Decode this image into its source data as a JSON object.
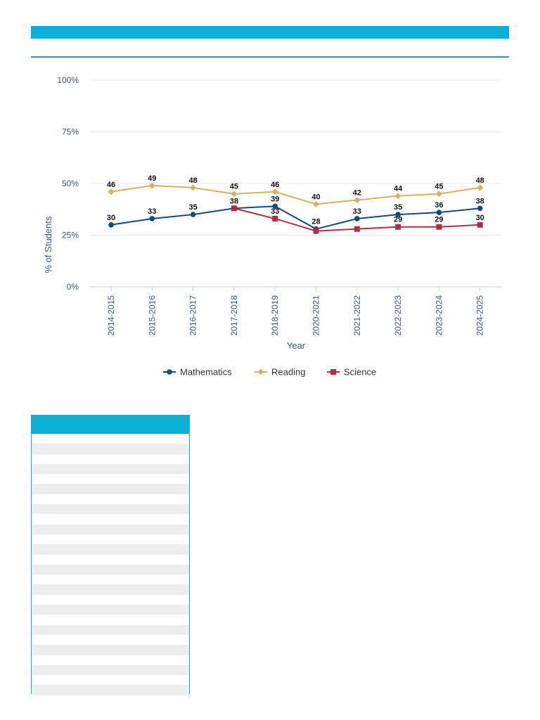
{
  "colors": {
    "accent": "#0ab0d8",
    "rule": "#2a93c0",
    "mathematics": "#174a7c",
    "reading": "#d4b35f",
    "science": "#b22c45"
  },
  "table": {
    "row_count": 26
  },
  "chart_data": {
    "type": "line",
    "xlabel": "Year",
    "ylabel": "% of Students",
    "ylim": [
      0,
      100
    ],
    "yticks": [
      0,
      25,
      50,
      75,
      100
    ],
    "ytick_labels": [
      "0%",
      "25%",
      "50%",
      "75%",
      "100%"
    ],
    "grid": true,
    "legend_position": "bottom-center",
    "categories": [
      "2014-2015",
      "2015-2016",
      "2016-2017",
      "2017-2018",
      "2018-2019",
      "2020-2021",
      "2021-2022",
      "2022-2023",
      "2023-2024",
      "2024-2025"
    ],
    "series": [
      {
        "name": "Mathematics",
        "marker": "circle",
        "color": "#174a7c",
        "values": [
          30,
          33,
          35,
          38,
          39,
          28,
          33,
          35,
          36,
          38
        ]
      },
      {
        "name": "Reading",
        "marker": "diamond",
        "color": "#d4b35f",
        "values": [
          46,
          49,
          48,
          45,
          46,
          40,
          42,
          44,
          45,
          48
        ]
      },
      {
        "name": "Science",
        "marker": "square",
        "color": "#b22c45",
        "values": [
          null,
          null,
          null,
          38,
          33,
          27,
          28,
          29,
          29,
          30
        ],
        "labels": [
          null,
          null,
          null,
          null,
          33,
          null,
          null,
          29,
          29,
          30
        ]
      }
    ]
  }
}
